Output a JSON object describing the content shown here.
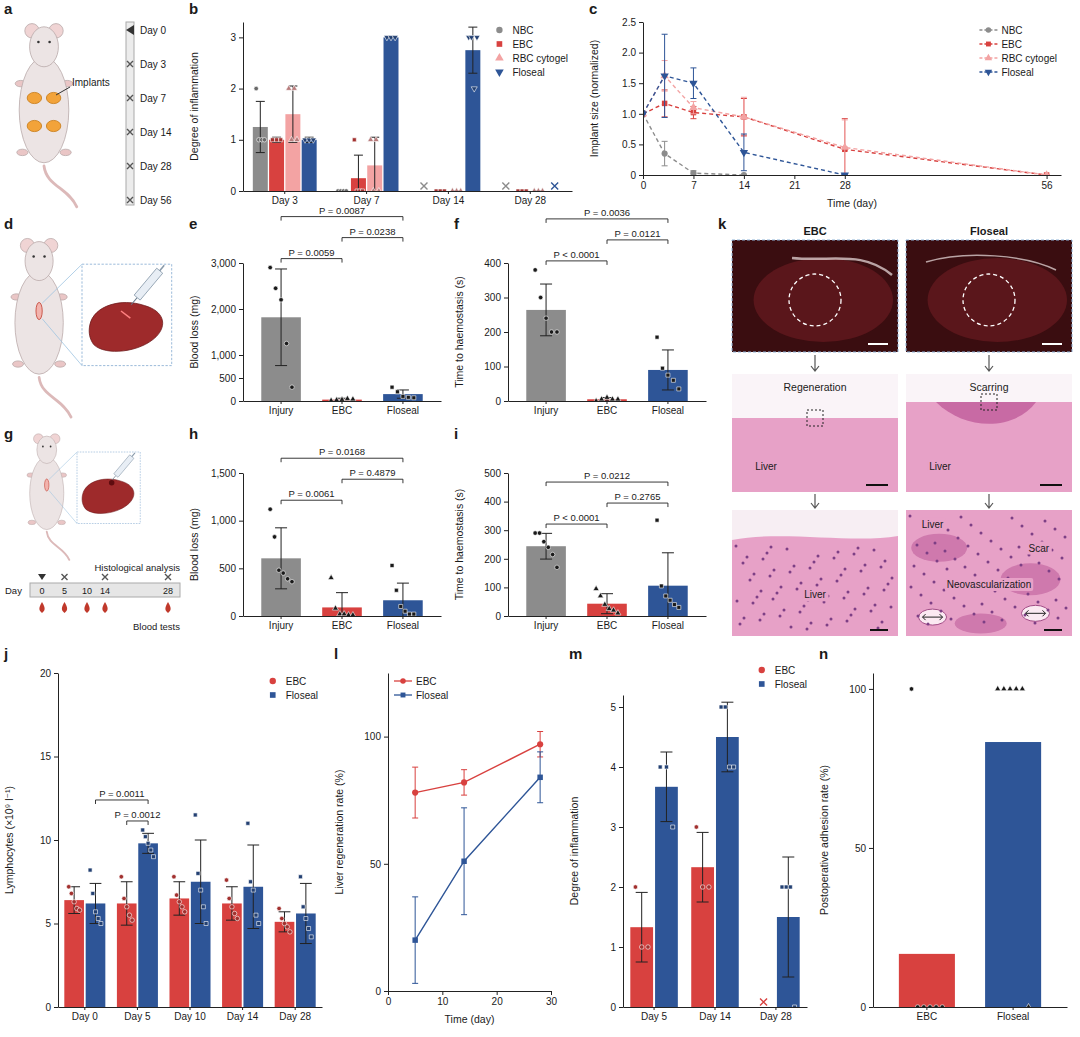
{
  "chart_data": [
    {
      "label": "b",
      "type": "bar",
      "y_label": "Degree of inflammation",
      "categories": [
        "Day 3",
        "Day 7",
        "Day 14",
        "Day 28"
      ],
      "ylim": [
        0,
        3.3
      ],
      "yticks": [
        0,
        1,
        2,
        3
      ],
      "legend": "top-right",
      "series": [
        {
          "name": "NBC",
          "color": "#8c8c8c",
          "marker": "circle",
          "values": [
            1.25,
            0,
            null,
            null
          ],
          "errors": [
            0.5,
            0,
            null,
            null
          ],
          "points": [
            [
              2,
              1,
              1,
              1
            ],
            [
              0,
              0,
              0,
              0
            ],
            null,
            null
          ]
        },
        {
          "name": "EBC",
          "color": "#d8413f",
          "marker": "square",
          "values": [
            1,
            0.25,
            0,
            0
          ],
          "errors": [
            0.05,
            0.45,
            0,
            0
          ],
          "points": [
            [
              1,
              1,
              1
            ],
            [
              1,
              0,
              0,
              0
            ],
            [
              0,
              0,
              0
            ],
            [
              0,
              0,
              0
            ]
          ]
        },
        {
          "name": "RBC cytogel",
          "color": "#f3a3a3",
          "marker": "triangle",
          "values": [
            1.5,
            0.5,
            0,
            0
          ],
          "errors": [
            0.55,
            0.55,
            0,
            0
          ],
          "points": [
            [
              2,
              1,
              2,
              1
            ],
            [
              1,
              0,
              1,
              0
            ],
            [
              0,
              0,
              0
            ],
            [
              0,
              0,
              0
            ]
          ]
        },
        {
          "name": "Floseal",
          "color": "#2e5597",
          "marker": "triangle-down",
          "values": [
            1,
            3,
            2.75,
            null
          ],
          "errors": [
            0.05,
            0,
            0.45,
            null
          ],
          "points": [
            [
              1,
              1,
              1
            ],
            [
              3,
              3,
              3
            ],
            [
              3,
              3,
              2,
              3
            ],
            null
          ]
        }
      ]
    },
    {
      "label": "c",
      "type": "line",
      "x_label": "Time (day)",
      "y_label": "Implant size (normalized)",
      "xlim": [
        0,
        58
      ],
      "xticks": [
        0,
        7,
        14,
        21,
        28,
        56
      ],
      "ylim": [
        0,
        2.5
      ],
      "yticks": [
        0,
        0.5,
        {
          "value": 1,
          "label": "1.0"
        },
        1.5,
        {
          "value": 2,
          "label": "2.0"
        },
        2.5
      ],
      "legend": "top-right",
      "series": [
        {
          "name": "NBC",
          "color": "#8c8c8c",
          "marker": "circle",
          "line_style": "dashed",
          "x": [
            0,
            3,
            7,
            14
          ],
          "values": [
            1,
            0.35,
            0.03,
            0
          ],
          "errors": [
            0,
            0.2,
            0.04,
            0
          ]
        },
        {
          "name": "EBC",
          "color": "#d8413f",
          "marker": "square",
          "line_style": "dashed",
          "x": [
            0,
            3,
            7,
            14,
            28,
            56
          ],
          "values": [
            1,
            1.17,
            1.02,
            0.95,
            0.42,
            0
          ],
          "errors": [
            0,
            0.22,
            0.1,
            0.3,
            0.5,
            0
          ]
        },
        {
          "name": "RBC cytogel",
          "color": "#f3a3a3",
          "marker": "triangle",
          "line_style": "dashed",
          "x": [
            0,
            3,
            7,
            14,
            28,
            56
          ],
          "values": [
            1,
            1.62,
            1.1,
            0.95,
            0.45,
            0
          ],
          "errors": [
            0,
            0.25,
            0.1,
            0.32,
            0.45,
            0
          ]
        },
        {
          "name": "Floseal",
          "color": "#2e5597",
          "marker": "triangle-down",
          "line_style": "dashed",
          "x": [
            0,
            3,
            7,
            14,
            28
          ],
          "values": [
            1,
            1.62,
            1.5,
            0.37,
            0
          ],
          "errors": [
            0,
            0.68,
            0.25,
            0.3,
            0
          ]
        }
      ]
    },
    {
      "label": "e",
      "type": "bar",
      "y_label": "Blood loss (mg)",
      "categories": [
        "Injury",
        "EBC",
        "Floseal"
      ],
      "ylim": [
        0,
        3000
      ],
      "yticks": [
        0,
        500,
        {
          "value": 1000,
          "label": "1,000"
        },
        {
          "value": 2000,
          "label": "2,000"
        },
        {
          "value": 3000,
          "label": "3,000"
        }
      ],
      "series": [
        {
          "colors": [
            "#8c8c8c",
            "#d8413f",
            "#2e5597"
          ],
          "values": [
            1820,
            30,
            150
          ],
          "errors": [
            1050,
            30,
            90
          ],
          "points": [
            [
              2900,
              2450,
              2200,
              1250,
              300
            ],
            [
              10,
              20,
              30,
              50,
              40
            ],
            [
              300,
              200,
              100,
              80,
              70
            ]
          ]
        }
      ],
      "annotations": [
        {
          "between": [
            "Injury",
            "Floseal"
          ],
          "text": "P = 0.0087"
        },
        {
          "between": [
            "Injury",
            "EBC"
          ],
          "text": "P = 0.0059"
        },
        {
          "between": [
            "EBC",
            "Floseal"
          ],
          "text": "P = 0.0238"
        }
      ]
    },
    {
      "label": "f",
      "type": "bar",
      "y_label": "Time to haemostasis (s)",
      "categories": [
        "Injury",
        "EBC",
        "Floseal"
      ],
      "ylim": [
        0,
        400
      ],
      "yticks": [
        0,
        100,
        200,
        300,
        400
      ],
      "series": [
        {
          "colors": [
            "#8c8c8c",
            "#d8413f",
            "#2e5597"
          ],
          "values": [
            264,
            5,
            90
          ],
          "errors": [
            75,
            5,
            58
          ],
          "points": [
            [
              380,
              300,
              240,
              200,
              200
            ],
            [
              0,
              5,
              10,
              5,
              5
            ],
            [
              185,
              95,
              75,
              60,
              35
            ]
          ]
        }
      ],
      "annotations": [
        {
          "between": [
            "Injury",
            "Floseal"
          ],
          "text": "P = 0.0036"
        },
        {
          "between": [
            "Injury",
            "EBC"
          ],
          "text": "P < 0.0001"
        },
        {
          "between": [
            "EBC",
            "Floseal"
          ],
          "text": "P = 0.0121"
        }
      ]
    },
    {
      "label": "h",
      "type": "bar",
      "y_label": "Blood loss (mg)",
      "categories": [
        "Injury",
        "EBC",
        "Floseal"
      ],
      "ylim": [
        0,
        1500
      ],
      "yticks": [
        0,
        500,
        {
          "value": 1000,
          "label": "1,000"
        },
        {
          "value": 1500,
          "label": "1,500"
        }
      ],
      "series": [
        {
          "colors": [
            "#8c8c8c",
            "#d8413f",
            "#2e5597"
          ],
          "values": [
            605,
            90,
            165
          ],
          "errors": [
            320,
            155,
            180
          ],
          "points": [
            [
              1120,
              830,
              480,
              450,
              390,
              360
            ],
            [
              400,
              80,
              20,
              20,
              10,
              10
            ],
            [
              530,
              270,
              100,
              50,
              20,
              20
            ]
          ]
        }
      ],
      "annotations": [
        {
          "between": [
            "Injury",
            "Floseal"
          ],
          "text": "P = 0.0168"
        },
        {
          "between": [
            "Injury",
            "EBC"
          ],
          "text": "P = 0.0061"
        },
        {
          "between": [
            "EBC",
            "Floseal"
          ],
          "text": "P = 0.4879"
        }
      ]
    },
    {
      "label": "i",
      "type": "bar",
      "y_label": "Time to haemostasis (s)",
      "categories": [
        "Injury",
        "EBC",
        "Floseal"
      ],
      "ylim": [
        0,
        500
      ],
      "yticks": [
        0,
        100,
        200,
        300,
        400,
        500
      ],
      "series": [
        {
          "colors": [
            "#8c8c8c",
            "#d8413f",
            "#2e5597"
          ],
          "values": [
            244,
            43,
            106
          ],
          "errors": [
            45,
            35,
            115
          ],
          "points": [
            [
              290,
              290,
              260,
              240,
              215,
              170
            ],
            [
              95,
              70,
              40,
              25,
              20,
              10
            ],
            [
              335,
              105,
              70,
              55,
              40,
              30
            ]
          ]
        }
      ],
      "annotations": [
        {
          "between": [
            "Injury",
            "Floseal"
          ],
          "text": "P = 0.0212"
        },
        {
          "between": [
            "Injury",
            "EBC"
          ],
          "text": "P < 0.0001"
        },
        {
          "between": [
            "EBC",
            "Floseal"
          ],
          "text": "P = 0.2765"
        }
      ]
    },
    {
      "label": "j",
      "type": "bar",
      "y_label": "Lymphocytes (×10⁹ l⁻¹)",
      "categories": [
        "Day 0",
        "Day 5",
        "Day 10",
        "Day 14",
        "Day 28"
      ],
      "ylim": [
        0,
        20
      ],
      "yticks": [
        0,
        5,
        10,
        15,
        20
      ],
      "legend": "top-right",
      "series": [
        {
          "name": "EBC",
          "color": "#d8413f",
          "marker": "circle",
          "values": [
            6.4,
            6.2,
            6.5,
            6.2,
            5.1
          ],
          "errors": [
            0.8,
            1.3,
            1.0,
            1.0,
            0.6
          ],
          "points": [
            [
              7.2,
              6.8,
              6.3,
              5.9,
              5.8
            ],
            [
              7.8,
              6.5,
              6.0,
              5.5,
              5.2
            ],
            [
              7.8,
              6.7,
              6.3,
              6.0,
              5.7
            ],
            [
              7.6,
              6.5,
              6.0,
              5.6,
              5.3
            ],
            [
              5.9,
              5.3,
              5.0,
              4.8,
              4.5
            ]
          ]
        },
        {
          "name": "Floseal",
          "color": "#2e5597",
          "marker": "square",
          "values": [
            6.2,
            9.8,
            7.5,
            7.2,
            5.6
          ],
          "errors": [
            1.2,
            0.6,
            2.5,
            2.5,
            1.8
          ],
          "points": [
            [
              8.2,
              6.8,
              5.7,
              5.3,
              5.0
            ],
            [
              10.6,
              10.2,
              9.8,
              9.4,
              9.0
            ],
            [
              11.5,
              8.0,
              7.0,
              6.0,
              5.0
            ],
            [
              11.0,
              7.5,
              7.0,
              5.5,
              5.0
            ],
            [
              7.8,
              6.0,
              5.3,
              4.7,
              4.2
            ]
          ]
        }
      ],
      "annotations": [
        {
          "between": [
            [
              "Day 0",
              "Floseal"
            ],
            [
              "Day 5",
              "Floseal"
            ]
          ],
          "text": "P = 0.0011"
        },
        {
          "between": [
            [
              "Day 5",
              "EBC"
            ],
            [
              "Day 5",
              "Floseal"
            ]
          ],
          "text": "P = 0.0012"
        }
      ]
    },
    {
      "label": "l",
      "type": "line",
      "x_label": "Time (day)",
      "y_label": "Liver regeneration rate (%)",
      "xlim": [
        0,
        30
      ],
      "xticks": [
        0,
        10,
        20,
        30
      ],
      "ylim": [
        0,
        125
      ],
      "yticks": [
        0,
        50,
        100
      ],
      "legend": "top-left",
      "series": [
        {
          "name": "EBC",
          "color": "#d8413f",
          "marker": "circle",
          "line_style": "solid",
          "x": [
            5,
            14,
            28
          ],
          "values": [
            78,
            82,
            97
          ],
          "errors": [
            10,
            5,
            5
          ]
        },
        {
          "name": "Floseal",
          "color": "#2e5597",
          "marker": "square",
          "line_style": "solid",
          "x": [
            5,
            14,
            28
          ],
          "values": [
            20,
            51,
            84
          ],
          "errors": [
            17,
            21,
            10
          ]
        }
      ]
    },
    {
      "label": "m",
      "type": "bar",
      "y_label": "Degree of inflammation",
      "categories": [
        "Day 5",
        "Day 14",
        "Day 28"
      ],
      "ylim": [
        0,
        5.2
      ],
      "yticks": [
        0,
        1,
        2,
        3,
        4,
        5
      ],
      "legend": "top",
      "series": [
        {
          "name": "EBC",
          "color": "#d8413f",
          "marker": "circle",
          "values": [
            1.33,
            2.33,
            null
          ],
          "errors": [
            0.58,
            0.58,
            null
          ],
          "points": [
            [
              2,
              1,
              1
            ],
            [
              3,
              2,
              2
            ],
            null
          ]
        },
        {
          "name": "Floseal",
          "color": "#2e5597",
          "marker": "square",
          "values": [
            3.67,
            4.5,
            1.5
          ],
          "errors": [
            0.58,
            0.58,
            1.0
          ],
          "points": [
            [
              4,
              4,
              3
            ],
            [
              5,
              5,
              4,
              4
            ],
            [
              2,
              2,
              2,
              0
            ]
          ]
        }
      ]
    },
    {
      "label": "n",
      "type": "bar",
      "y_label": "Postoperative adhesion rate (%)",
      "categories": [
        "EBC",
        "Floseal"
      ],
      "ylim": [
        0,
        105
      ],
      "yticks": [
        0,
        50,
        100
      ],
      "series": [
        {
          "colors": [
            "#d8413f",
            "#2e5597"
          ],
          "values": [
            16.7,
            83.3
          ],
          "points": [
            [
              100,
              0,
              0,
              0,
              0,
              0
            ],
            [
              100,
              100,
              100,
              100,
              100,
              0
            ]
          ]
        }
      ]
    }
  ],
  "illustrations": {
    "a": {
      "label": "a",
      "callout": "Implants",
      "timeline": [
        "Day 0",
        "Day 3",
        "Day 7",
        "Day 14",
        "Day 28",
        "Day 56"
      ]
    },
    "d": {
      "label": "d"
    },
    "g": {
      "label": "g",
      "axis_title": "Day",
      "days": [
        0,
        5,
        10,
        14,
        28
      ],
      "histology_days": [
        5,
        14,
        28
      ],
      "histology_label": "Histological analysis",
      "blood_test_days": [
        0,
        5,
        10,
        14,
        28
      ],
      "blood_test_label": "Blood tests"
    },
    "k": {
      "label": "k",
      "columns": [
        {
          "title": "EBC",
          "middle_labels": [
            "Regeneration",
            "Liver"
          ],
          "bottom_labels": [
            "Liver"
          ]
        },
        {
          "title": "Floseal",
          "middle_labels": [
            "Scarring",
            "Liver"
          ],
          "bottom_labels": [
            "Liver",
            "Scar",
            "Neovascularization"
          ]
        }
      ]
    }
  }
}
